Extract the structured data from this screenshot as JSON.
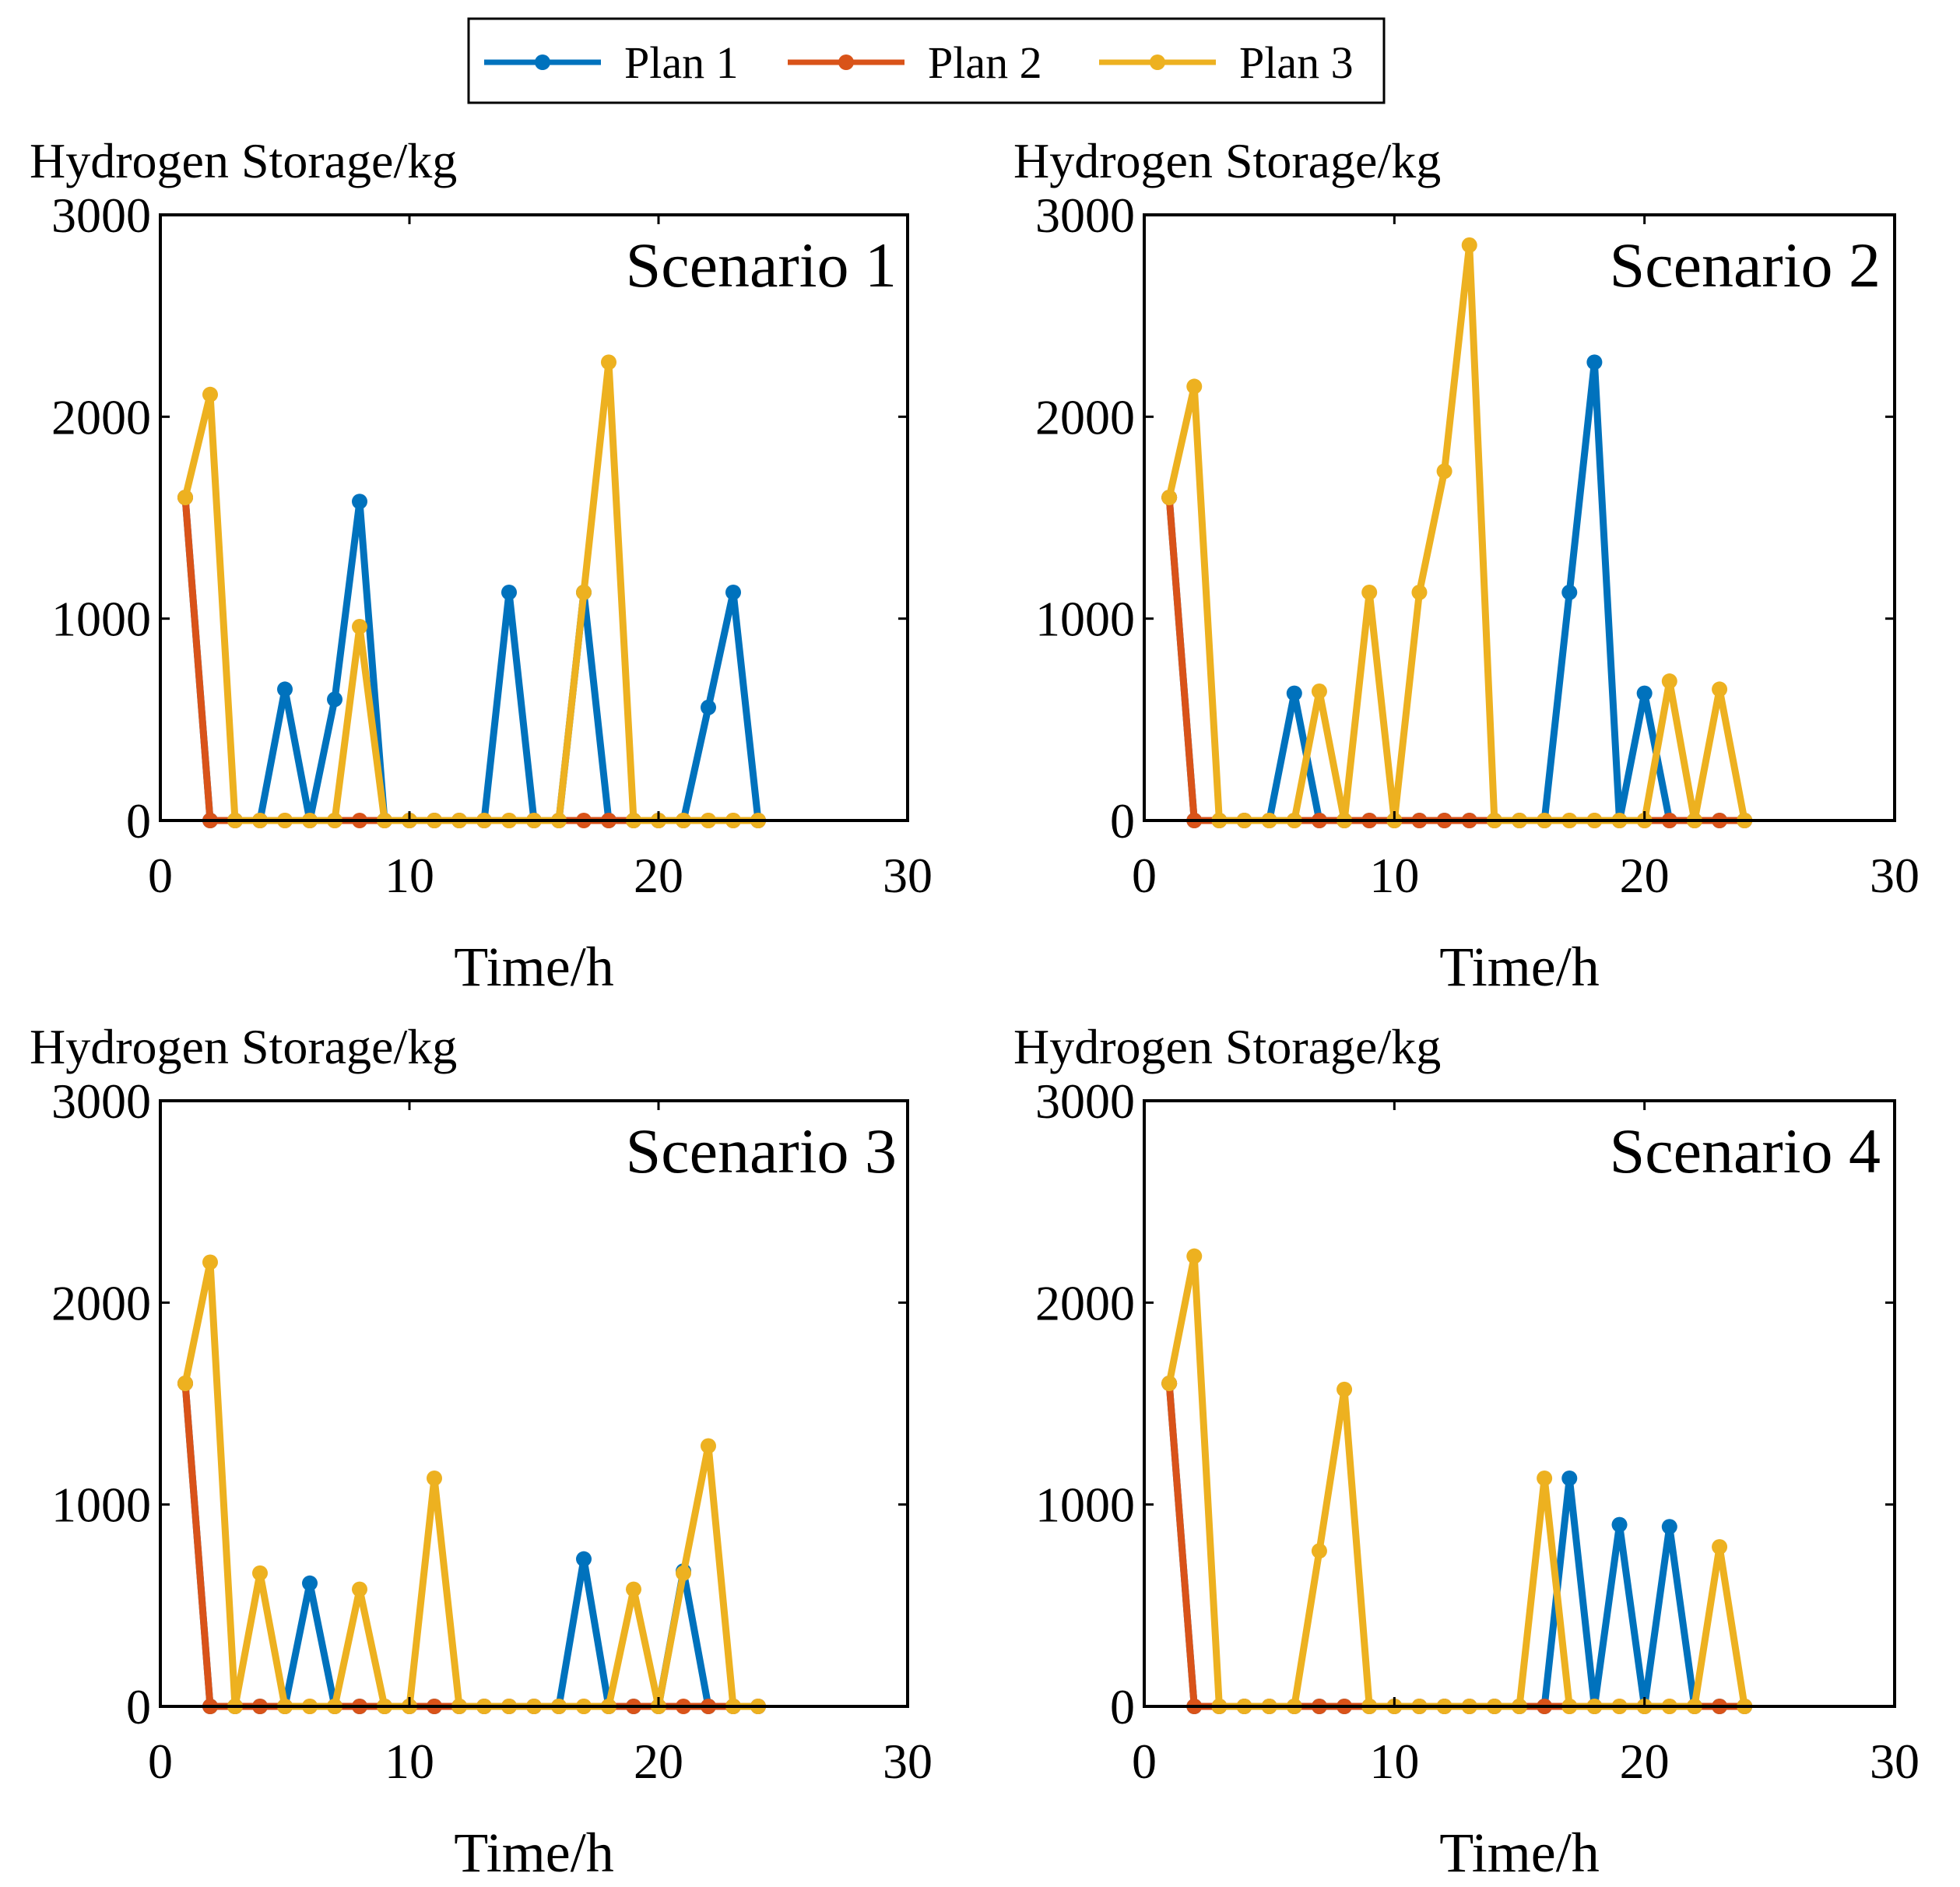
{
  "colors": {
    "plan1": "#0072BD",
    "plan2": "#D95319",
    "plan3": "#EDB120"
  },
  "legend": [
    {
      "label": "Plan 1",
      "color": "#0072BD"
    },
    {
      "label": "Plan 2",
      "color": "#D95319"
    },
    {
      "label": "Plan 3",
      "color": "#EDB120"
    }
  ],
  "chart_data": [
    {
      "type": "line",
      "title": "Scenario 1",
      "xlabel": "Time/h",
      "ylabel": "Hydrogen Storage/kg",
      "xlim": [
        0,
        30
      ],
      "ylim": [
        0,
        3000
      ],
      "xticks": [
        "0",
        "10",
        "20",
        "30"
      ],
      "yticks": [
        "0",
        "1000",
        "2000",
        "3000"
      ],
      "x": [
        1,
        2,
        3,
        4,
        5,
        6,
        7,
        8,
        9,
        10,
        11,
        12,
        13,
        14,
        15,
        16,
        17,
        18,
        19,
        20,
        21,
        22,
        23,
        24
      ],
      "series": [
        {
          "name": "Plan 1",
          "values": [
            1600,
            0,
            0,
            0,
            650,
            0,
            600,
            1580,
            0,
            0,
            0,
            0,
            0,
            1130,
            0,
            0,
            1130,
            0,
            0,
            0,
            0,
            560,
            1130,
            0
          ]
        },
        {
          "name": "Plan 2",
          "values": [
            1600,
            0,
            0,
            0,
            0,
            0,
            0,
            0,
            0,
            0,
            0,
            0,
            0,
            0,
            0,
            0,
            0,
            0,
            0,
            0,
            0,
            0,
            0,
            0
          ]
        },
        {
          "name": "Plan 3",
          "values": [
            1600,
            2110,
            0,
            0,
            0,
            0,
            0,
            960,
            0,
            0,
            0,
            0,
            0,
            0,
            0,
            0,
            1130,
            2270,
            0,
            0,
            0,
            0,
            0,
            0
          ]
        }
      ]
    },
    {
      "type": "line",
      "title": "Scenario 2",
      "xlabel": "Time/h",
      "ylabel": "Hydrogen Storage/kg",
      "xlim": [
        0,
        30
      ],
      "ylim": [
        0,
        3000
      ],
      "xticks": [
        "0",
        "10",
        "20",
        "30"
      ],
      "yticks": [
        "0",
        "1000",
        "2000",
        "3000"
      ],
      "x": [
        1,
        2,
        3,
        4,
        5,
        6,
        7,
        8,
        9,
        10,
        11,
        12,
        13,
        14,
        15,
        16,
        17,
        18,
        19,
        20,
        21,
        22,
        23,
        24
      ],
      "series": [
        {
          "name": "Plan 1",
          "values": [
            1600,
            0,
            0,
            0,
            0,
            630,
            0,
            0,
            0,
            0,
            0,
            0,
            0,
            0,
            0,
            0,
            1130,
            2270,
            0,
            630,
            0,
            0,
            0,
            0
          ]
        },
        {
          "name": "Plan 2",
          "values": [
            1600,
            0,
            0,
            0,
            0,
            0,
            0,
            0,
            0,
            0,
            0,
            0,
            0,
            0,
            0,
            0,
            0,
            0,
            0,
            0,
            0,
            0,
            0,
            0
          ]
        },
        {
          "name": "Plan 3",
          "values": [
            1600,
            2150,
            0,
            0,
            0,
            0,
            640,
            0,
            1130,
            0,
            1130,
            1730,
            2850,
            0,
            0,
            0,
            0,
            0,
            0,
            0,
            690,
            0,
            650,
            0
          ]
        }
      ]
    },
    {
      "type": "line",
      "title": "Scenario 3",
      "xlabel": "Time/h",
      "ylabel": "Hydrogen Storage/kg",
      "xlim": [
        0,
        30
      ],
      "ylim": [
        0,
        3000
      ],
      "xticks": [
        "0",
        "10",
        "20",
        "30"
      ],
      "yticks": [
        "0",
        "1000",
        "2000",
        "3000"
      ],
      "x": [
        1,
        2,
        3,
        4,
        5,
        6,
        7,
        8,
        9,
        10,
        11,
        12,
        13,
        14,
        15,
        16,
        17,
        18,
        19,
        20,
        21,
        22,
        23,
        24
      ],
      "series": [
        {
          "name": "Plan 1",
          "values": [
            1600,
            0,
            0,
            0,
            0,
            610,
            0,
            0,
            0,
            0,
            0,
            0,
            0,
            0,
            0,
            0,
            730,
            0,
            0,
            0,
            670,
            0,
            0,
            0
          ]
        },
        {
          "name": "Plan 2",
          "values": [
            1600,
            0,
            0,
            0,
            0,
            0,
            0,
            0,
            0,
            0,
            0,
            0,
            0,
            0,
            0,
            0,
            0,
            0,
            0,
            0,
            0,
            0,
            0,
            0
          ]
        },
        {
          "name": "Plan 3",
          "values": [
            1600,
            2200,
            0,
            660,
            0,
            0,
            0,
            580,
            0,
            0,
            1130,
            0,
            0,
            0,
            0,
            0,
            0,
            0,
            580,
            0,
            660,
            1290,
            0,
            0
          ]
        }
      ]
    },
    {
      "type": "line",
      "title": "Scenario 4",
      "xlabel": "Time/h",
      "ylabel": "Hydrogen Storage/kg",
      "xlim": [
        0,
        30
      ],
      "ylim": [
        0,
        3000
      ],
      "xticks": [
        "0",
        "10",
        "20",
        "30"
      ],
      "yticks": [
        "0",
        "1000",
        "2000",
        "3000"
      ],
      "x": [
        1,
        2,
        3,
        4,
        5,
        6,
        7,
        8,
        9,
        10,
        11,
        12,
        13,
        14,
        15,
        16,
        17,
        18,
        19,
        20,
        21,
        22,
        23,
        24
      ],
      "series": [
        {
          "name": "Plan 1",
          "values": [
            1600,
            0,
            0,
            0,
            0,
            0,
            0,
            0,
            0,
            0,
            0,
            0,
            0,
            0,
            0,
            0,
            1130,
            0,
            900,
            0,
            890,
            0,
            0,
            0
          ]
        },
        {
          "name": "Plan 2",
          "values": [
            1600,
            0,
            0,
            0,
            0,
            0,
            0,
            0,
            0,
            0,
            0,
            0,
            0,
            0,
            0,
            0,
            0,
            0,
            0,
            0,
            0,
            0,
            0,
            0
          ]
        },
        {
          "name": "Plan 3",
          "values": [
            1600,
            2230,
            0,
            0,
            0,
            0,
            770,
            1570,
            0,
            0,
            0,
            0,
            0,
            0,
            0,
            1130,
            0,
            0,
            0,
            0,
            0,
            0,
            790,
            0
          ]
        }
      ]
    }
  ]
}
